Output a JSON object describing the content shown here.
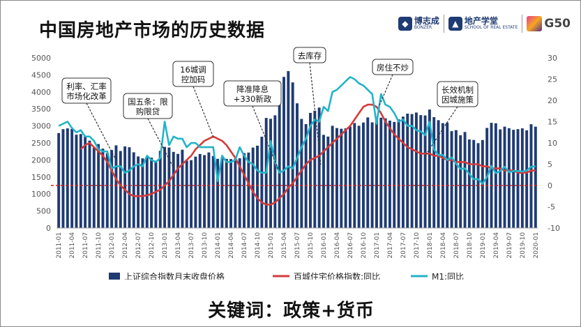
{
  "header": {
    "title": "中国房地产市场的历史数据",
    "logo1_main": "博志成",
    "logo1_sub": "BONZER",
    "logo2_main": "地产学堂",
    "logo2_sub": "SCHOOL OF REAL ESTATE",
    "logo3": "G50"
  },
  "footer": {
    "keywords": "关键词：政策+货币"
  },
  "colors": {
    "bar": "#1f3b73",
    "red": "#d63a3a",
    "cyan": "#23b3c9",
    "dash": "#d02020"
  },
  "chart_data": {
    "type": "bar",
    "x": [
      "2011-01",
      "2011-02",
      "2011-03",
      "2011-04",
      "2011-05",
      "2011-06",
      "2011-07",
      "2011-08",
      "2011-09",
      "2011-10",
      "2011-11",
      "2011-12",
      "2012-01",
      "2012-02",
      "2012-03",
      "2012-04",
      "2012-05",
      "2012-06",
      "2012-07",
      "2012-08",
      "2012-09",
      "2012-10",
      "2012-11",
      "2012-12",
      "2013-01",
      "2013-02",
      "2013-03",
      "2013-04",
      "2013-05",
      "2013-06",
      "2013-07",
      "2013-08",
      "2013-09",
      "2013-10",
      "2013-11",
      "2013-12",
      "2014-01",
      "2014-02",
      "2014-03",
      "2014-04",
      "2014-05",
      "2014-06",
      "2014-07",
      "2014-08",
      "2014-09",
      "2014-10",
      "2014-11",
      "2014-12",
      "2015-01",
      "2015-02",
      "2015-03",
      "2015-04",
      "2015-05",
      "2015-06",
      "2015-07",
      "2015-08",
      "2015-09",
      "2015-10",
      "2015-11",
      "2015-12",
      "2016-01",
      "2016-02",
      "2016-03",
      "2016-04",
      "2016-05",
      "2016-06",
      "2016-07",
      "2016-08",
      "2016-09",
      "2016-10",
      "2016-11",
      "2016-12",
      "2017-01",
      "2017-02",
      "2017-03",
      "2017-04",
      "2017-05",
      "2017-06",
      "2017-07",
      "2017-08",
      "2017-09",
      "2017-10",
      "2017-11",
      "2017-12",
      "2018-01",
      "2018-02",
      "2018-03",
      "2018-04",
      "2018-05",
      "2018-06",
      "2018-07",
      "2018-08",
      "2018-09",
      "2018-10",
      "2018-11",
      "2018-12",
      "2019-01",
      "2019-02",
      "2019-03",
      "2019-04",
      "2019-05",
      "2019-06",
      "2019-07",
      "2019-08",
      "2019-09",
      "2019-10",
      "2019-11",
      "2019-12",
      "2020-01"
    ],
    "tick_labels": [
      "2011-01",
      "2011-04",
      "2011-07",
      "2011-10",
      "2012-01",
      "2012-04",
      "2012-07",
      "2012-10",
      "2013-01",
      "2013-04",
      "2013-07",
      "2013-10",
      "2014-01",
      "2014-04",
      "2014-07",
      "2014-10",
      "2015-01",
      "2015-04",
      "2015-07",
      "2015-10",
      "2016-01",
      "2016-04",
      "2016-07",
      "2016-10",
      "2017-01",
      "2017-04",
      "2017-07",
      "2017-10",
      "2018-01",
      "2018-04",
      "2018-07",
      "2018-10",
      "2019-01",
      "2019-04",
      "2019-07",
      "2019-10",
      "2020-01"
    ],
    "series": [
      {
        "name": "上证综合指数月末收盘价格",
        "axis": "left",
        "type": "bar",
        "values": [
          2790,
          2905,
          2928,
          2911,
          2743,
          2762,
          2701,
          2568,
          2359,
          2468,
          2333,
          2199,
          2293,
          2429,
          2263,
          2397,
          2373,
          2225,
          2103,
          2047,
          2086,
          2069,
          1980,
          2269,
          2385,
          2366,
          2237,
          2178,
          2301,
          1979,
          1994,
          2098,
          2175,
          2142,
          2221,
          2116,
          2033,
          2056,
          2033,
          2026,
          2039,
          2048,
          2202,
          2217,
          2364,
          2420,
          2683,
          3235,
          3210,
          3311,
          3748,
          4441,
          4612,
          4278,
          3664,
          3206,
          3053,
          3383,
          3446,
          3539,
          2738,
          2688,
          3004,
          2938,
          2917,
          2930,
          2979,
          3085,
          3005,
          3100,
          3250,
          3104,
          3159,
          3242,
          3223,
          3155,
          3117,
          3192,
          3273,
          3361,
          3349,
          3393,
          3317,
          3307,
          3481,
          3259,
          3169,
          3082,
          3095,
          2847,
          2876,
          2725,
          2821,
          2603,
          2588,
          2494,
          2585,
          2941,
          3091,
          3078,
          2899,
          2979,
          2933,
          2886,
          2905,
          2929,
          2872,
          3050,
          2977
        ]
      },
      {
        "name": "百城住宅价格指数:同比",
        "axis": "right",
        "type": "line",
        "values": [
          null,
          null,
          null,
          null,
          null,
          8.5,
          9.5,
          10,
          9,
          8,
          7,
          5.5,
          3.5,
          1.5,
          0,
          -1,
          -2,
          -2.5,
          -2.5,
          -2.5,
          -2.3,
          -2,
          -1.5,
          -1,
          0,
          1,
          2.5,
          4,
          5,
          6,
          7,
          8.5,
          9.5,
          10.5,
          11,
          11.5,
          11,
          10.5,
          9.5,
          8,
          6.5,
          4.5,
          2.5,
          0.5,
          -1.5,
          -3,
          -4,
          -4.5,
          -4.5,
          -4,
          -3,
          -2,
          -0.5,
          0.5,
          2,
          3.5,
          5,
          6,
          6.5,
          7,
          8,
          9,
          10,
          11,
          12,
          13,
          14,
          15.5,
          17,
          18.5,
          19,
          19,
          18.5,
          17,
          15,
          13.5,
          12,
          11,
          10,
          9,
          8.5,
          8,
          7.5,
          7.5,
          7.5,
          7,
          7,
          6.5,
          6,
          6,
          5.5,
          5.5,
          5.5,
          5,
          5,
          5,
          4.5,
          4.5,
          4,
          4,
          4,
          3.5,
          3.5,
          3.5,
          3,
          3,
          3,
          3.5,
          3.5
        ]
      },
      {
        "name": "M1:同比",
        "axis": "right",
        "type": "line",
        "values": [
          14,
          14.5,
          15,
          13.5,
          12.5,
          13,
          11.5,
          11.5,
          10.5,
          8.5,
          8,
          8,
          4,
          4.5,
          4.5,
          3,
          3.5,
          4.5,
          5,
          4.5,
          7,
          6,
          5.5,
          6.5,
          15,
          9.5,
          11.5,
          11,
          11,
          9,
          10,
          10,
          9,
          9,
          9,
          9,
          1,
          7,
          5.5,
          5.5,
          6,
          9,
          7,
          5.5,
          5,
          3.5,
          3,
          3,
          10.5,
          5.5,
          3,
          3.5,
          4.5,
          4,
          6.5,
          9,
          11,
          14,
          15.5,
          15,
          18.5,
          17.5,
          22,
          22.5,
          23.5,
          24.5,
          25.5,
          25,
          24,
          23.5,
          22.5,
          21.5,
          14.5,
          21.5,
          19,
          18.5,
          17,
          15,
          15.5,
          14,
          14,
          13,
          12.7,
          11.8,
          15,
          8.5,
          7.1,
          7.2,
          6,
          6.6,
          5.1,
          3.9,
          4,
          2.7,
          1.5,
          1.5,
          0.4,
          2,
          4.6,
          2.9,
          3.4,
          4.4,
          3.1,
          3.4,
          3.4,
          3.3,
          3.5,
          4.4,
          4.5
        ]
      }
    ],
    "left_axis": {
      "ticks": [
        "5000",
        "4500",
        "4000",
        "3500",
        "3000",
        "2500",
        "2000",
        "1500",
        "1000",
        "500",
        "0"
      ],
      "range": [
        0,
        5000
      ]
    },
    "right_axis": {
      "ticks": [
        "30",
        "25",
        "20",
        "15",
        "10",
        "5",
        "0",
        "-5",
        "-10"
      ],
      "range": [
        -10,
        30
      ]
    },
    "reference_line": {
      "value": 0,
      "axis": "right",
      "style": "dashed"
    },
    "annotations": [
      {
        "text_lines": [
          "利率、汇率",
          "市场化改革"
        ],
        "anchor": "2012-01"
      },
      {
        "text_lines": [
          "国五条：限",
          "购限贷"
        ],
        "anchor": "2013-03"
      },
      {
        "text_lines": [
          "16城调",
          "控加码"
        ],
        "anchor": "2013-11"
      },
      {
        "text_lines": [
          "降准降息",
          "+330新政"
        ],
        "anchor": "2015-04"
      },
      {
        "text_lines": [
          "去库存"
        ],
        "anchor": "2015-12"
      },
      {
        "text_lines": [
          "房住不炒"
        ],
        "anchor": "2017-01"
      },
      {
        "text_lines": [
          "长效机制",
          "因城施策"
        ],
        "anchor": "2018-01"
      }
    ],
    "legend": {
      "position": "bottom",
      "items": [
        "上证综合指数月末收盘价格",
        "百城住宅价格指数:同比",
        "M1:同比"
      ]
    },
    "grid": false
  }
}
